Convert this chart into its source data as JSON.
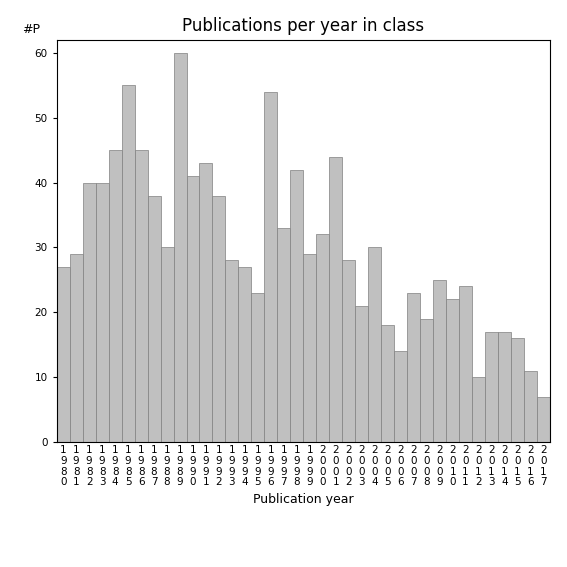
{
  "title": "Publications per year in class",
  "xlabel": "Publication year",
  "ylabel": "#P",
  "categories": [
    "1980",
    "1981",
    "1982",
    "1983",
    "1984",
    "1985",
    "1986",
    "1987",
    "1988",
    "1989",
    "1990",
    "1991",
    "1992",
    "1993",
    "1994",
    "1995",
    "1996",
    "1997",
    "1998",
    "1999",
    "2000",
    "2001",
    "2002",
    "2003",
    "2004",
    "2005",
    "2006",
    "2007",
    "2008",
    "2009",
    "2010",
    "2011",
    "2012",
    "2013",
    "2014",
    "2015",
    "2016",
    "2017"
  ],
  "values": [
    27,
    29,
    40,
    40,
    45,
    55,
    45,
    38,
    30,
    60,
    41,
    43,
    38,
    28,
    27,
    23,
    54,
    33,
    42,
    29,
    32,
    44,
    28,
    21,
    30,
    18,
    14,
    23,
    19,
    25,
    22,
    24,
    10,
    17,
    17,
    16,
    11,
    7
  ],
  "bar_color": "#c0c0c0",
  "bar_edgecolor": "#808080",
  "ylim": [
    0,
    62
  ],
  "yticks": [
    0,
    10,
    20,
    30,
    40,
    50,
    60
  ],
  "background_color": "#ffffff",
  "title_fontsize": 12,
  "axis_label_fontsize": 9,
  "tick_fontsize": 7.5
}
